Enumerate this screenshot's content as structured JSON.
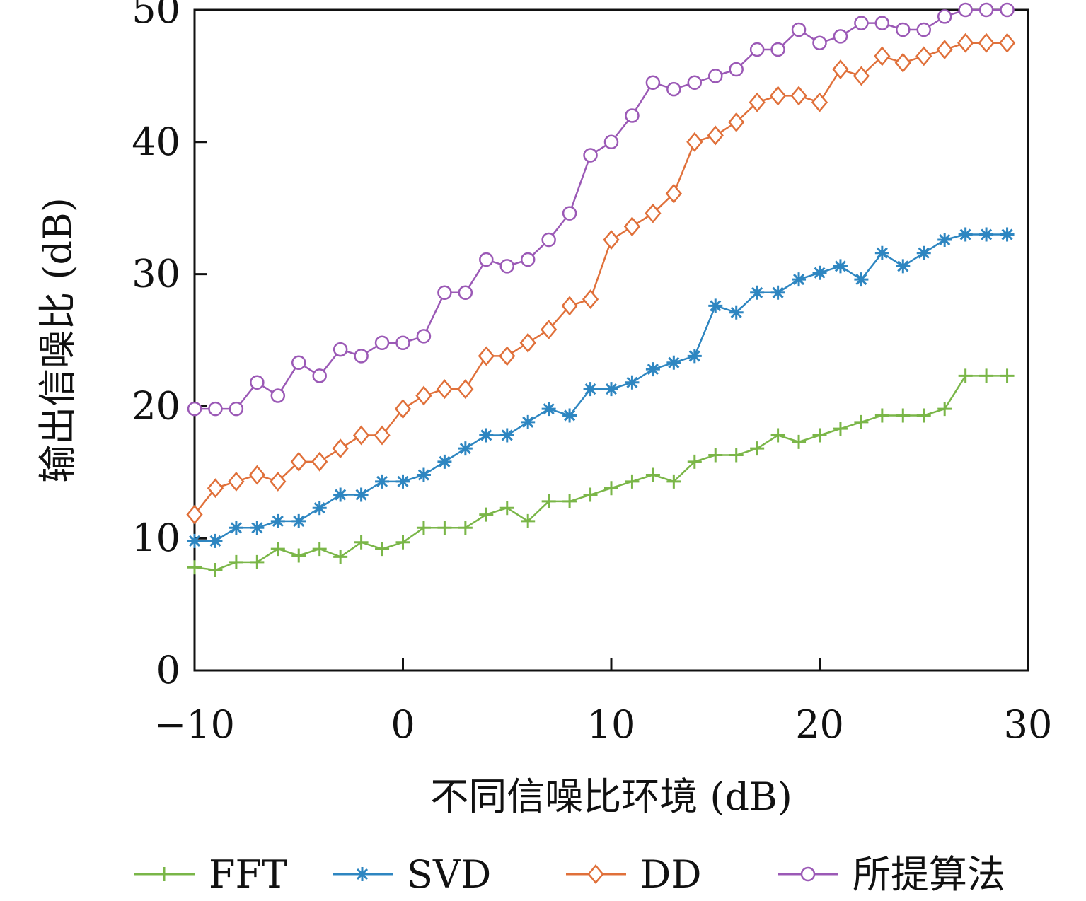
{
  "chart_data": {
    "type": "line",
    "xlabel": "不同信噪比环境 (dB)",
    "ylabel": "输出信噪比 (dB)",
    "xlim": [
      -10,
      30
    ],
    "ylim": [
      0,
      50
    ],
    "xticks": [
      -10,
      0,
      10,
      20,
      30
    ],
    "yticks": [
      0,
      10,
      20,
      30,
      40,
      50
    ],
    "xtick_labels": [
      "−10",
      "0",
      "10",
      "20",
      "30"
    ],
    "ytick_labels": [
      "0",
      "10",
      "20",
      "30",
      "40",
      "50"
    ],
    "grid": false,
    "legend_position": "bottom",
    "x": [
      -10,
      -9,
      -8,
      -7,
      -6,
      -5,
      -4,
      -3,
      -2,
      -1,
      0,
      1,
      2,
      3,
      4,
      5,
      6,
      7,
      8,
      9,
      10,
      11,
      12,
      13,
      14,
      15,
      16,
      17,
      18,
      19,
      20,
      21,
      22,
      23,
      24,
      25,
      26,
      27,
      28,
      29
    ],
    "series": [
      {
        "name": "FFT",
        "color": "#7ab648",
        "marker": "plus",
        "values": [
          7.8,
          7.6,
          8.2,
          8.2,
          9.2,
          8.7,
          9.2,
          8.6,
          9.7,
          9.2,
          9.7,
          10.8,
          10.8,
          10.8,
          11.8,
          12.3,
          11.3,
          12.8,
          12.8,
          13.3,
          13.8,
          14.3,
          14.8,
          14.3,
          15.8,
          16.3,
          16.3,
          16.8,
          17.8,
          17.3,
          17.8,
          18.3,
          18.8,
          19.3,
          19.3,
          19.3,
          19.8,
          22.3,
          22.3,
          22.3
        ]
      },
      {
        "name": "SVD",
        "color": "#2e86c1",
        "marker": "asterisk",
        "values": [
          9.8,
          9.8,
          10.8,
          10.8,
          11.3,
          11.3,
          12.3,
          13.3,
          13.3,
          14.3,
          14.3,
          14.8,
          15.8,
          16.8,
          17.8,
          17.8,
          18.8,
          19.8,
          19.3,
          21.3,
          21.3,
          21.8,
          22.8,
          23.3,
          23.8,
          27.6,
          27.1,
          28.6,
          28.6,
          29.6,
          30.1,
          30.6,
          29.6,
          31.6,
          30.6,
          31.6,
          32.6,
          33.0,
          33.0,
          33.0
        ]
      },
      {
        "name": "DD",
        "color": "#e0703a",
        "marker": "diamond",
        "values": [
          11.8,
          13.8,
          14.3,
          14.8,
          14.3,
          15.8,
          15.8,
          16.8,
          17.8,
          17.8,
          19.8,
          20.8,
          21.3,
          21.3,
          23.8,
          23.8,
          24.8,
          25.8,
          27.6,
          28.1,
          32.6,
          33.6,
          34.6,
          36.1,
          40.0,
          40.5,
          41.5,
          43.0,
          43.5,
          43.5,
          43.0,
          45.5,
          45.0,
          46.5,
          46.0,
          46.5,
          47.0,
          47.5,
          47.5,
          47.5
        ]
      },
      {
        "name": "所提算法",
        "color": "#9b59b6",
        "marker": "circle",
        "values": [
          19.8,
          19.8,
          19.8,
          21.8,
          20.8,
          23.3,
          22.3,
          24.3,
          23.8,
          24.8,
          24.8,
          25.3,
          28.6,
          28.6,
          31.1,
          30.6,
          31.1,
          32.6,
          34.6,
          39.0,
          40.0,
          42.0,
          44.5,
          44.0,
          44.5,
          45.0,
          45.5,
          47.0,
          47.0,
          48.5,
          47.5,
          48.0,
          49.0,
          49.0,
          48.5,
          48.5,
          49.5,
          50.0,
          50.0,
          50.0
        ]
      }
    ]
  }
}
